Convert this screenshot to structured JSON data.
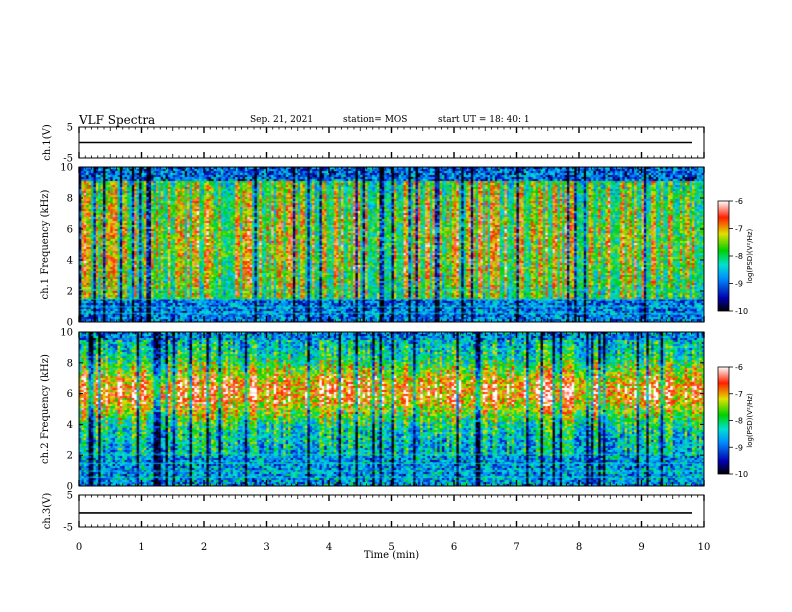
{
  "header": {
    "title": "VLF Spectra",
    "date": "Sep. 21, 2021",
    "station": "station= MOS",
    "start": "start UT = 18: 40: 1"
  },
  "chart_data": [
    {
      "type": "line",
      "panel": "ch1-waveform",
      "ylabel": "ch.1(V)",
      "ylim": [
        -5,
        5
      ],
      "yticks": [
        "5",
        "-5"
      ],
      "xlim": [
        0,
        10
      ]
    },
    {
      "type": "heatmap",
      "panel": "ch1-spectrogram",
      "ylabel": "ch.1 Frequency (kHz)",
      "ylim": [
        0,
        10
      ],
      "yticks": [
        "0",
        "2",
        "4",
        "6",
        "8",
        "10"
      ],
      "xlim": [
        0,
        10
      ],
      "colorbar": {
        "label": "log(PSD)(V²/Hz)",
        "ticks": [
          "-6",
          "-7",
          "-8",
          "-9",
          "-10"
        ],
        "range": [
          -10,
          -6
        ]
      }
    },
    {
      "type": "heatmap",
      "panel": "ch2-spectrogram",
      "ylabel": "ch.2 Frequency (kHz)",
      "ylim": [
        0,
        10
      ],
      "yticks": [
        "0",
        "2",
        "4",
        "6",
        "8",
        "10"
      ],
      "xlim": [
        0,
        10
      ],
      "colorbar": {
        "label": "log(PSD)(V²/Hz)",
        "ticks": [
          "-6",
          "-7",
          "-8",
          "-9",
          "-10"
        ],
        "range": [
          -10,
          -6
        ]
      }
    },
    {
      "type": "line",
      "panel": "ch3-waveform",
      "ylabel": "ch.3(V)",
      "ylim": [
        -5,
        5
      ],
      "yticks": [
        "5",
        "-5"
      ],
      "xlim": [
        0,
        10
      ]
    }
  ],
  "xaxis": {
    "label": "Time (min)",
    "ticks": [
      "0",
      "1",
      "2",
      "3",
      "4",
      "5",
      "6",
      "7",
      "8",
      "9",
      "10"
    ],
    "range": [
      0,
      10
    ]
  }
}
